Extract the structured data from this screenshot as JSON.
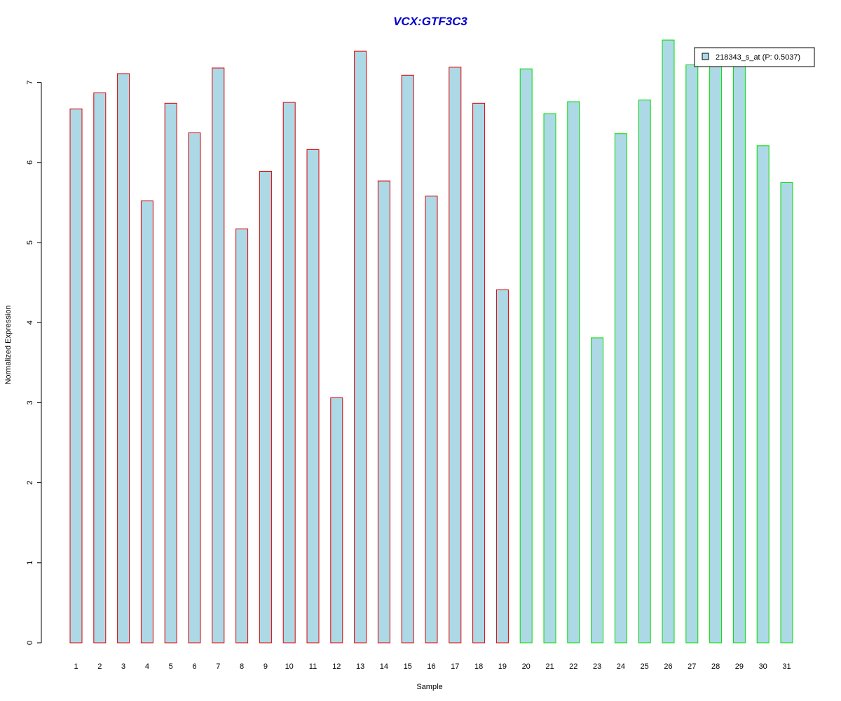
{
  "chart_data": {
    "type": "bar",
    "title": "VCX:GTF3C3",
    "xlabel": "Sample",
    "ylabel": "Normalized Expression",
    "categories": [
      "1",
      "2",
      "3",
      "4",
      "5",
      "6",
      "7",
      "8",
      "9",
      "10",
      "11",
      "12",
      "13",
      "14",
      "15",
      "16",
      "17",
      "18",
      "19",
      "20",
      "21",
      "22",
      "23",
      "24",
      "25",
      "26",
      "27",
      "28",
      "29",
      "30",
      "31"
    ],
    "series": [
      {
        "name": "218343_s_at (P: 0.5037)",
        "values": [
          6.67,
          6.87,
          7.11,
          5.52,
          6.74,
          6.37,
          7.18,
          5.17,
          5.89,
          6.75,
          6.16,
          3.06,
          7.39,
          5.77,
          7.09,
          5.58,
          7.19,
          6.74,
          4.41,
          7.17,
          6.61,
          6.76,
          3.81,
          6.36,
          6.78,
          7.53,
          7.22,
          7.22,
          7.22,
          6.21,
          5.75
        ]
      }
    ],
    "groups": [
      {
        "from": 1,
        "to": 19,
        "border_color": "#dd0000"
      },
      {
        "from": 20,
        "to": 31,
        "border_color": "#00dd00"
      }
    ],
    "yticks": [
      "0",
      "1",
      "2",
      "3",
      "4",
      "5",
      "6",
      "7"
    ],
    "ylim": [
      0,
      7.55
    ],
    "bar_fill": "#add8e6",
    "title_color": "#0000cc",
    "legend_position": "top-right",
    "grid": false
  }
}
